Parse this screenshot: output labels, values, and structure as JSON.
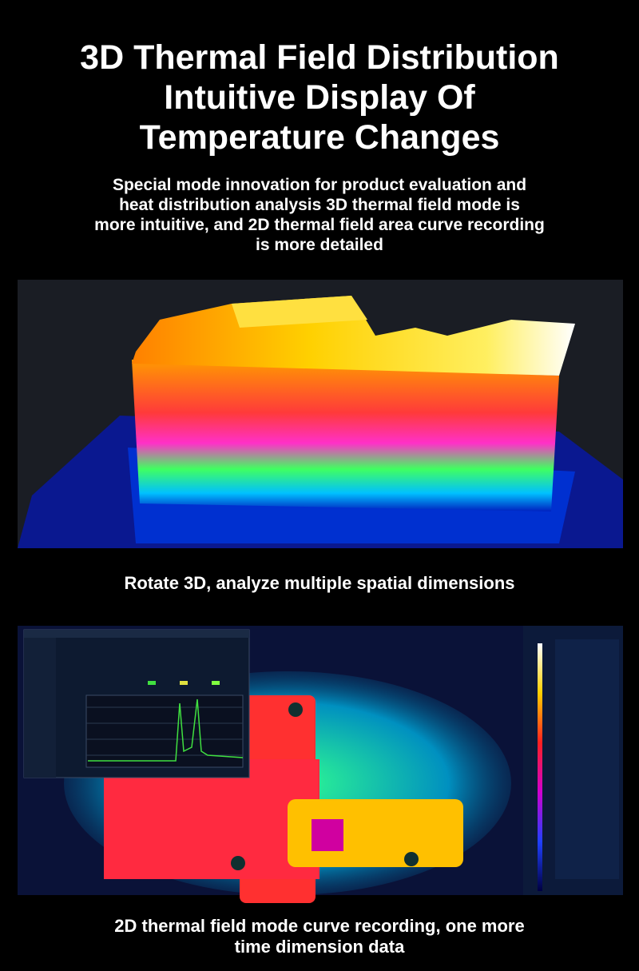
{
  "header": {
    "title_lines": [
      "3D Thermal Field Distribution",
      "Intuitive Display Of",
      "Temperature Changes"
    ],
    "subtitle_lines": [
      "Special mode innovation for product evaluation and",
      "heat distribution analysis 3D thermal field mode is",
      "more intuitive, and 2D thermal field area curve recording",
      "is more detailed"
    ]
  },
  "sections": [
    {
      "caption_lines": [
        "Rotate 3D, analyze multiple spatial dimensions"
      ]
    },
    {
      "caption_lines": [
        "2D thermal field mode curve recording, one more",
        "time dimension data"
      ]
    }
  ]
}
